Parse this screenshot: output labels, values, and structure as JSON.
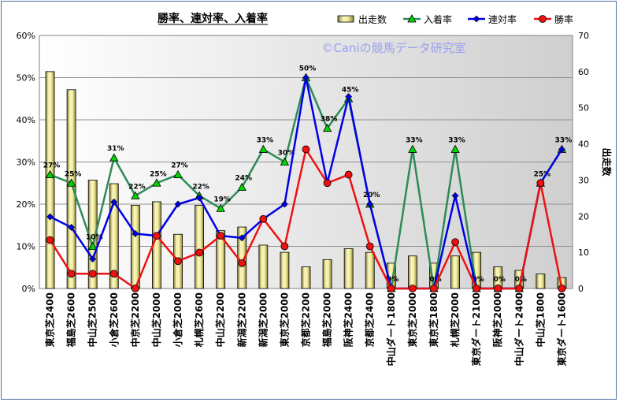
{
  "chart_data": {
    "type": "bar+line",
    "title": "勝率、連対率、入着率",
    "watermark": "©Caniの競馬データ研究室",
    "categories": [
      "東京芝2400",
      "福島芝2600",
      "中山芝2500",
      "小倉芝2600",
      "中京芝2200",
      "中山芝2000",
      "小倉芝2000",
      "札幌芝2600",
      "中山芝2200",
      "新潟芝2200",
      "新潟芝2000",
      "東京芝2000",
      "京都芝2200",
      "福島芝2000",
      "阪神芝2400",
      "京都芝2400",
      "中山ダート1800",
      "東京芝2000",
      "東京芝1800",
      "札幌芝2000",
      "東京ダート2100",
      "阪神芝2000",
      "中山ダート2400",
      "中山芝1800",
      "東京ダート1600"
    ],
    "left_axis": {
      "ticks": [
        "0%",
        "10%",
        "20%",
        "30%",
        "40%",
        "50%",
        "60%"
      ],
      "min": 0,
      "max": 60
    },
    "right_axis": {
      "label": "出走数",
      "ticks": [
        "0",
        "10",
        "20",
        "30",
        "40",
        "50",
        "60",
        "70"
      ],
      "min": 0,
      "max": 70
    },
    "grid": true,
    "legend_position": "top-right",
    "series": [
      {
        "name": "出走数",
        "type": "bar",
        "axis": "right",
        "color": "#f0eca0",
        "values": [
          60,
          55,
          30,
          29,
          23,
          24,
          15,
          23,
          16,
          17,
          12,
          10,
          6,
          8,
          11,
          10,
          7,
          9,
          7,
          9,
          10,
          6,
          5,
          4,
          3
        ]
      },
      {
        "name": "入着率",
        "type": "line",
        "axis": "left",
        "color": "#2e8b57",
        "marker": "triangle",
        "marker_color": "#00d400",
        "values": [
          27,
          25,
          10,
          31,
          22,
          25,
          27,
          22,
          19,
          24,
          33,
          30,
          50,
          38,
          45,
          20,
          0,
          33,
          0,
          33,
          0,
          0,
          0,
          25,
          33
        ],
        "point_labels": [
          "27%",
          "25%",
          "10%",
          "31%",
          "22%",
          "25%",
          "27%",
          "22%",
          "19%",
          "24%",
          "33%",
          "30%",
          "50%",
          "38%",
          "45%",
          "20%",
          "0%",
          "33%",
          "0%",
          "33%",
          "0%",
          "0%",
          "0%",
          "25%",
          "33%"
        ]
      },
      {
        "name": "連対率",
        "type": "line",
        "axis": "left",
        "color": "#0000e6",
        "marker": "diamond",
        "values": [
          17,
          14.5,
          7,
          20.5,
          13,
          12.5,
          20,
          21.5,
          12.5,
          12,
          16.5,
          20,
          50,
          25,
          45.5,
          20,
          0,
          0,
          0,
          22,
          0,
          0,
          0,
          25,
          33
        ]
      },
      {
        "name": "勝率",
        "type": "line",
        "axis": "left",
        "color": "#ee1111",
        "marker": "circle",
        "values": [
          11.5,
          3.5,
          3.5,
          3.5,
          0,
          12.5,
          6.5,
          8.5,
          12.5,
          6,
          16.5,
          10,
          33,
          25,
          27,
          10,
          0,
          0,
          0,
          11,
          0,
          0,
          0,
          25,
          0
        ]
      }
    ]
  }
}
